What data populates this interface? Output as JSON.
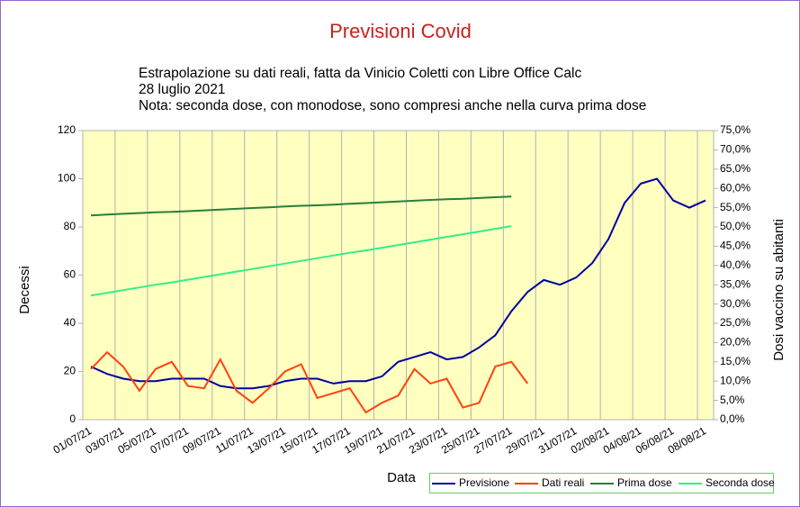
{
  "chart_data": {
    "type": "line",
    "title": "Previsioni Covid",
    "subtitle": [
      "Estrapolazione su dati reali, fatta da Vinicio Coletti con Libre Office Calc",
      "28 luglio 2021",
      "Nota: seconda dose, con monodose, sono compresi anche nella curva prima dose"
    ],
    "x_label": "Data",
    "y_label": "Decessi",
    "y2_label": "Dosi vaccino su abitanti",
    "categories": [
      "01/07/21",
      null,
      "03/07/21",
      null,
      "05/07/21",
      null,
      "07/07/21",
      null,
      "09/07/21",
      null,
      "11/07/21",
      null,
      "13/07/21",
      null,
      "15/07/21",
      null,
      "17/07/21",
      null,
      "19/07/21",
      null,
      "21/07/21",
      null,
      "23/07/21",
      null,
      "25/07/21",
      null,
      "27/07/21",
      null,
      "29/07/21",
      null,
      "31/07/21",
      null,
      "02/08/21",
      null,
      "04/08/21",
      null,
      "06/08/21",
      null,
      "08/08/21"
    ],
    "series": [
      {
        "name": "Previsione",
        "color": "#0000a0",
        "values": [
          22,
          19,
          17,
          16,
          16,
          17,
          17,
          17,
          14,
          13,
          13,
          14,
          16,
          17,
          17,
          15,
          16,
          16,
          18,
          24,
          26,
          28,
          25,
          26,
          30,
          35,
          45,
          53,
          58,
          56,
          59,
          65,
          75,
          90,
          98,
          100,
          91,
          88,
          91
        ]
      },
      {
        "name": "Dati reali",
        "color": "#ff420e",
        "values": [
          21,
          28,
          22,
          12,
          21,
          24,
          14,
          13,
          25,
          12,
          7,
          13,
          20,
          23,
          9,
          11,
          13,
          3,
          7,
          10,
          21,
          15,
          17,
          5,
          7,
          22,
          24,
          15,
          null,
          null,
          null,
          null,
          null,
          null,
          null,
          null,
          null,
          null,
          null
        ]
      },
      {
        "name": "Prima dose",
        "color": "#2a7e3a",
        "axis": "y2",
        "values": [
          53.0,
          53.2,
          53.4,
          53.6,
          53.8,
          53.9,
          54.1,
          54.3,
          54.5,
          54.7,
          54.9,
          55.1,
          55.3,
          55.5,
          55.6,
          55.8,
          56.0,
          56.2,
          56.4,
          56.6,
          56.8,
          57.0,
          57.2,
          57.3,
          57.5,
          57.7,
          57.9,
          null,
          null,
          null,
          null,
          null,
          null,
          null,
          null,
          null,
          null,
          null,
          null
        ]
      },
      {
        "name": "Seconda dose",
        "color": "#33ee88",
        "axis": "y2",
        "values": [
          32.2,
          32.9,
          33.6,
          34.3,
          35.0,
          35.6,
          36.3,
          37.0,
          37.7,
          38.4,
          39.1,
          39.8,
          40.5,
          41.2,
          41.9,
          42.6,
          43.3,
          43.9,
          44.6,
          45.3,
          46.0,
          46.7,
          47.4,
          48.1,
          48.8,
          49.5,
          50.2,
          null,
          null,
          null,
          null,
          null,
          null,
          null,
          null,
          null,
          null,
          null,
          null
        ]
      }
    ],
    "ylim": [
      0,
      120
    ],
    "yticks": [
      0,
      20,
      40,
      60,
      80,
      100,
      120
    ],
    "y2lim": [
      0,
      75
    ],
    "y2ticks": [
      {
        "value": 0,
        "label": "0,0%"
      },
      {
        "value": 5,
        "label": "5,0%"
      },
      {
        "value": 10,
        "label": "10,0%"
      },
      {
        "value": 15,
        "label": "15,0%"
      },
      {
        "value": 20,
        "label": "20,0%"
      },
      {
        "value": 25,
        "label": "25,0%"
      },
      {
        "value": 30,
        "label": "30,0%"
      },
      {
        "value": 35,
        "label": "35,0%"
      },
      {
        "value": 40,
        "label": "40,0%"
      },
      {
        "value": 45,
        "label": "45,0%"
      },
      {
        "value": 50,
        "label": "50,0%"
      },
      {
        "value": 55,
        "label": "55,0%"
      },
      {
        "value": 60,
        "label": "60,0%"
      },
      {
        "value": 65,
        "label": "65,0%"
      },
      {
        "value": 70,
        "label": "70,0%"
      },
      {
        "value": 75,
        "label": "75,0%"
      }
    ],
    "legend": "bottom-right",
    "grid": "vertical"
  }
}
